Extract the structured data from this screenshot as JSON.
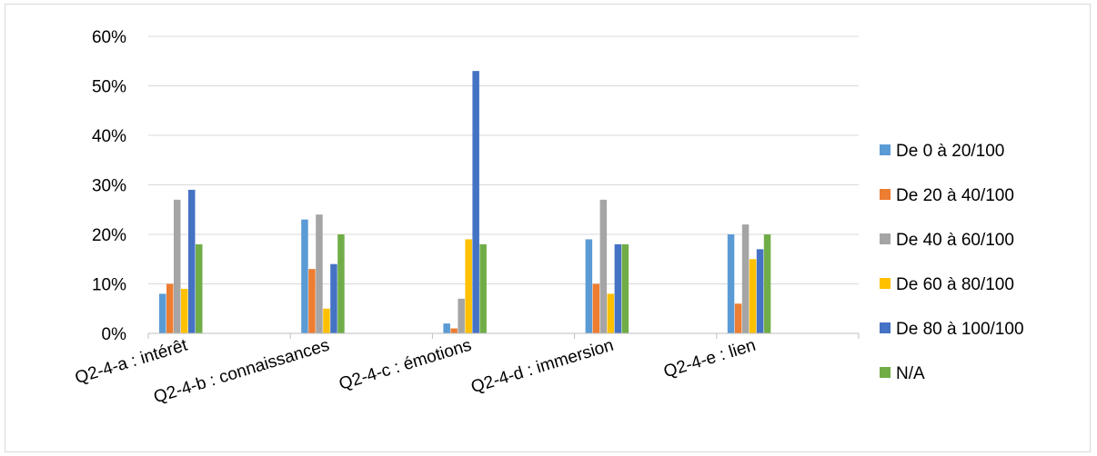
{
  "chart_data": {
    "type": "bar",
    "categories": [
      "Q2-4-a : intérêt",
      "Q2-4-b : connaissances",
      "Q2-4-c : émotions",
      "Q2-4-d : immersion",
      "Q2-4-e : lien"
    ],
    "series": [
      {
        "name": "De 0 à 20/100",
        "color": "#5b9bd5",
        "values": [
          0.08,
          0.23,
          0.02,
          0.19,
          0.2
        ]
      },
      {
        "name": "De 20 à 40/100",
        "color": "#ed7d31",
        "values": [
          0.1,
          0.13,
          0.01,
          0.1,
          0.06
        ]
      },
      {
        "name": "De 40 à 60/100",
        "color": "#a5a5a5",
        "values": [
          0.27,
          0.24,
          0.07,
          0.27,
          0.22
        ]
      },
      {
        "name": "De 60 à 80/100",
        "color": "#ffc000",
        "values": [
          0.09,
          0.05,
          0.19,
          0.08,
          0.15
        ]
      },
      {
        "name": "De 80 à 100/100",
        "color": "#4472c4",
        "values": [
          0.29,
          0.14,
          0.53,
          0.18,
          0.17
        ]
      },
      {
        "name": "N/A",
        "color": "#70ad47",
        "values": [
          0.18,
          0.2,
          0.18,
          0.18,
          0.2
        ]
      }
    ],
    "y_ticks": [
      "0%",
      "10%",
      "20%",
      "30%",
      "40%",
      "50%",
      "60%"
    ],
    "ylim": [
      0,
      0.6
    ],
    "grid": true,
    "legend_position": "right",
    "title": "",
    "xlabel": "",
    "ylabel": ""
  }
}
